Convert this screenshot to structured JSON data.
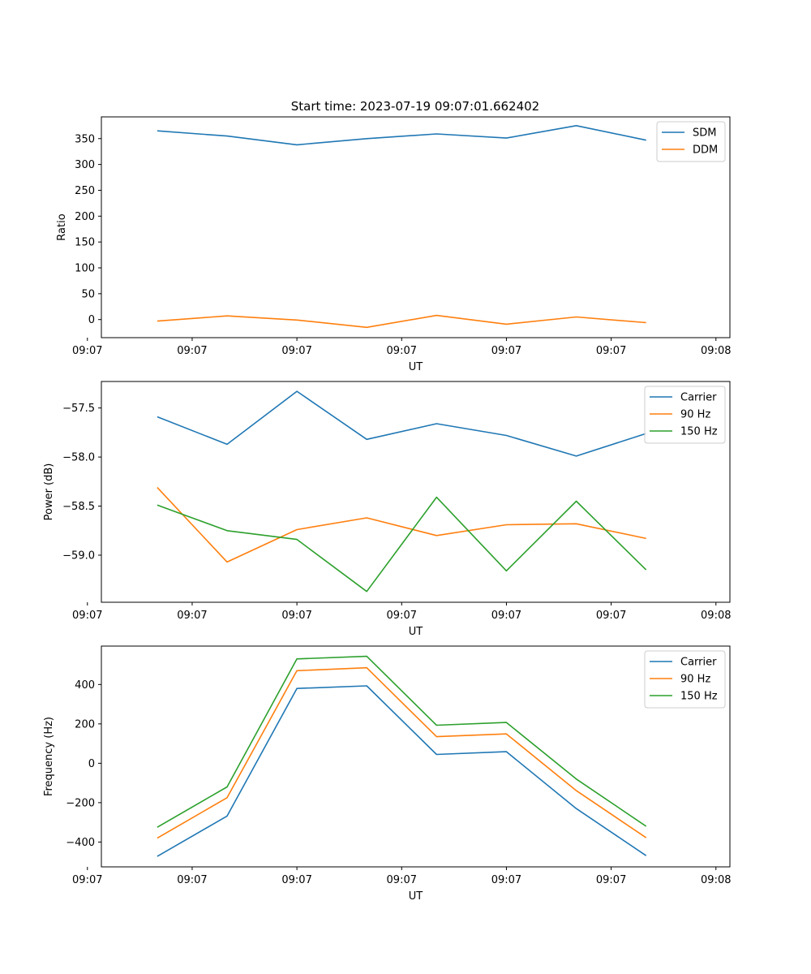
{
  "figure": {
    "title": "Start time: 2023-07-19 09:07:01.662402"
  },
  "chart_data": [
    {
      "type": "line",
      "title": "Start time: 2023-07-19 09:07:01.662402",
      "xlabel": "UT",
      "ylabel": "Ratio",
      "x": [
        1,
        2,
        3,
        4,
        5,
        6,
        7,
        8
      ],
      "xlim": [
        0.2,
        9.2
      ],
      "x_ticks": [
        0,
        1.5,
        3,
        4.5,
        6,
        7.5,
        9
      ],
      "x_tick_labels": [
        "09:07",
        "09:07",
        "09:07",
        "09:07",
        "09:07",
        "09:07",
        "09:08"
      ],
      "ylim": [
        -35,
        392
      ],
      "y_ticks": [
        0,
        50,
        100,
        150,
        200,
        250,
        300,
        350
      ],
      "y_tick_labels": [
        "0",
        "50",
        "100",
        "150",
        "200",
        "250",
        "300",
        "350"
      ],
      "legend_position": "top-right",
      "series": [
        {
          "name": "SDM",
          "color": "#1f77b4",
          "values": [
            365,
            355,
            338,
            350,
            359,
            351,
            375,
            347
          ]
        },
        {
          "name": "DDM",
          "color": "#ff7f0e",
          "values": [
            -3,
            7,
            -1,
            -15,
            8,
            -9,
            5,
            -6
          ]
        }
      ]
    },
    {
      "type": "line",
      "title": "",
      "xlabel": "UT",
      "ylabel": "Power (dB)",
      "x": [
        1,
        2,
        3,
        4,
        5,
        6,
        7,
        8
      ],
      "xlim": [
        0.2,
        9.2
      ],
      "x_ticks": [
        0,
        1.5,
        3,
        4.5,
        6,
        7.5,
        9
      ],
      "x_tick_labels": [
        "09:07",
        "09:07",
        "09:07",
        "09:07",
        "09:07",
        "09:07",
        "09:08"
      ],
      "ylim": [
        -59.48,
        -57.23
      ],
      "y_ticks": [
        -59.0,
        -58.5,
        -58.0,
        -57.5
      ],
      "y_tick_labels": [
        "−59.0",
        "−58.5",
        "−58.0",
        "−57.5"
      ],
      "legend_position": "top-right",
      "series": [
        {
          "name": "Carrier",
          "color": "#1f77b4",
          "values": [
            -57.59,
            -57.87,
            -57.33,
            -57.82,
            -57.66,
            -57.78,
            -57.99,
            -57.76
          ]
        },
        {
          "name": "90 Hz",
          "color": "#ff7f0e",
          "values": [
            -58.31,
            -59.07,
            -58.74,
            -58.62,
            -58.8,
            -58.69,
            -58.68,
            -58.83
          ]
        },
        {
          "name": "150 Hz",
          "color": "#2ca02c",
          "values": [
            -58.49,
            -58.75,
            -58.84,
            -59.37,
            -58.41,
            -59.16,
            -58.45,
            -59.15
          ]
        }
      ]
    },
    {
      "type": "line",
      "title": "",
      "xlabel": "UT",
      "ylabel": "Frequency (Hz)",
      "x": [
        1,
        2,
        3,
        4,
        5,
        6,
        7,
        8
      ],
      "xlim": [
        0.2,
        9.2
      ],
      "x_ticks": [
        0,
        1.5,
        3,
        4.5,
        6,
        7.5,
        9
      ],
      "x_tick_labels": [
        "09:07",
        "09:07",
        "09:07",
        "09:07",
        "09:07",
        "09:07",
        "09:08"
      ],
      "ylim": [
        -526,
        595
      ],
      "y_ticks": [
        -400,
        -200,
        0,
        200,
        400
      ],
      "y_tick_labels": [
        "−400",
        "−200",
        "0",
        "200",
        "400"
      ],
      "legend_position": "top-right",
      "series": [
        {
          "name": "Carrier",
          "color": "#1f77b4",
          "values": [
            -473,
            -268,
            380,
            393,
            45,
            59,
            -230,
            -469
          ]
        },
        {
          "name": "90 Hz",
          "color": "#ff7f0e",
          "values": [
            -380,
            -175,
            470,
            485,
            135,
            149,
            -139,
            -378
          ]
        },
        {
          "name": "150 Hz",
          "color": "#2ca02c",
          "values": [
            -325,
            -120,
            530,
            543,
            193,
            207,
            -80,
            -320
          ]
        }
      ]
    }
  ]
}
